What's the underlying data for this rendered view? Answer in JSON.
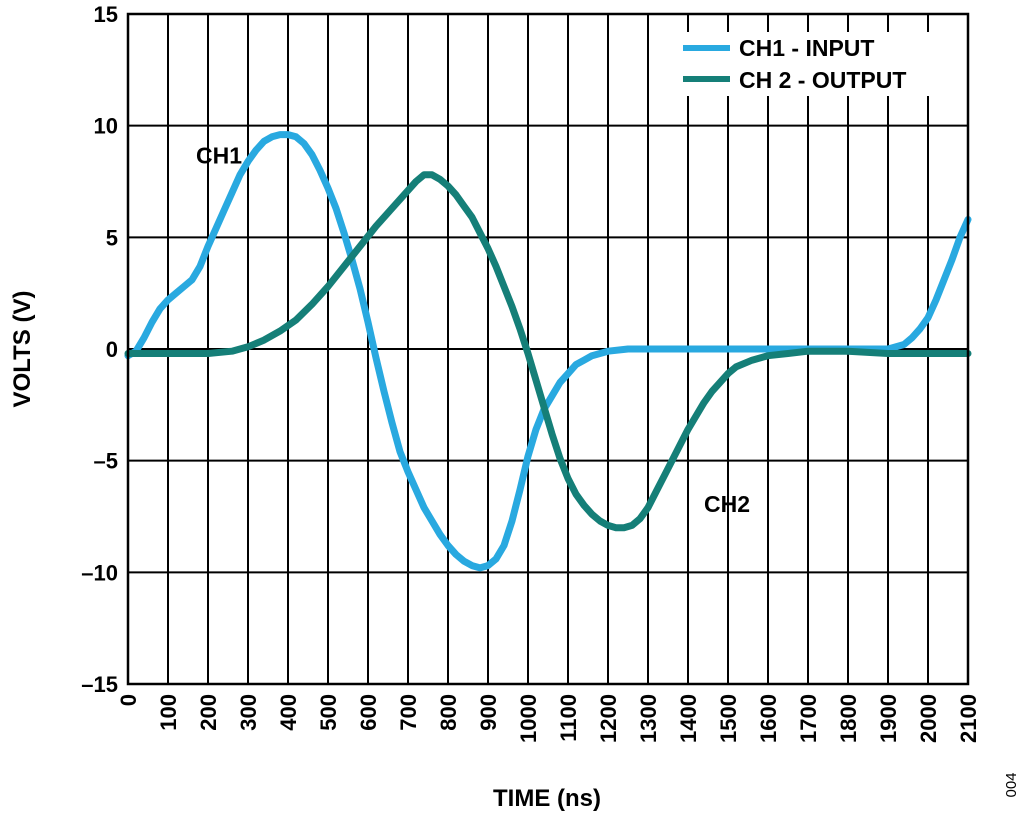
{
  "chart_data": {
    "type": "line",
    "xlabel": "TIME (ns)",
    "ylabel": "VOLTS (V)",
    "xlim": [
      0,
      2100
    ],
    "ylim": [
      -15,
      15
    ],
    "x_ticks": [
      0,
      100,
      200,
      300,
      400,
      500,
      600,
      700,
      800,
      900,
      1000,
      1100,
      1200,
      1300,
      1400,
      1500,
      1600,
      1700,
      1800,
      1900,
      2000,
      2100
    ],
    "x_tick_labels": [
      "0",
      "100",
      "200",
      "300",
      "400",
      "500",
      "600",
      "700",
      "800",
      "900",
      "1000",
      "1100",
      "1200",
      "1300",
      "1400",
      "1500",
      "1600",
      "1700",
      "1800",
      "1900",
      "2000",
      "2100"
    ],
    "y_ticks": [
      15,
      10,
      5,
      0,
      -5,
      -10,
      -15
    ],
    "y_tick_labels": [
      "15",
      "10",
      "5",
      "0",
      "–5",
      "–10",
      "–15"
    ],
    "grid": true,
    "legend_position": "top-right",
    "series": [
      {
        "name": "CH1 - INPUT",
        "color": "#29a9e0",
        "points": [
          [
            0,
            -0.3
          ],
          [
            20,
            -0.1
          ],
          [
            40,
            0.5
          ],
          [
            60,
            1.2
          ],
          [
            80,
            1.8
          ],
          [
            100,
            2.2
          ],
          [
            120,
            2.5
          ],
          [
            140,
            2.8
          ],
          [
            160,
            3.1
          ],
          [
            180,
            3.7
          ],
          [
            200,
            4.6
          ],
          [
            220,
            5.4
          ],
          [
            240,
            6.2
          ],
          [
            260,
            7
          ],
          [
            280,
            7.8
          ],
          [
            300,
            8.4
          ],
          [
            320,
            8.9
          ],
          [
            340,
            9.3
          ],
          [
            360,
            9.5
          ],
          [
            380,
            9.6
          ],
          [
            400,
            9.6
          ],
          [
            420,
            9.5
          ],
          [
            440,
            9.2
          ],
          [
            460,
            8.7
          ],
          [
            480,
            8
          ],
          [
            500,
            7.2
          ],
          [
            520,
            6.3
          ],
          [
            540,
            5.2
          ],
          [
            560,
            4
          ],
          [
            580,
            2.7
          ],
          [
            600,
            1.2
          ],
          [
            620,
            -0.4
          ],
          [
            640,
            -1.9
          ],
          [
            660,
            -3.3
          ],
          [
            680,
            -4.6
          ],
          [
            700,
            -5.5
          ],
          [
            720,
            -6.3
          ],
          [
            740,
            -7.1
          ],
          [
            760,
            -7.7
          ],
          [
            780,
            -8.3
          ],
          [
            800,
            -8.8
          ],
          [
            820,
            -9.2
          ],
          [
            840,
            -9.5
          ],
          [
            860,
            -9.7
          ],
          [
            880,
            -9.8
          ],
          [
            900,
            -9.7
          ],
          [
            920,
            -9.4
          ],
          [
            940,
            -8.8
          ],
          [
            960,
            -7.7
          ],
          [
            980,
            -6.3
          ],
          [
            1000,
            -4.8
          ],
          [
            1020,
            -3.6
          ],
          [
            1040,
            -2.7
          ],
          [
            1060,
            -2.1
          ],
          [
            1080,
            -1.5
          ],
          [
            1100,
            -1.1
          ],
          [
            1120,
            -0.7
          ],
          [
            1140,
            -0.5
          ],
          [
            1160,
            -0.3
          ],
          [
            1180,
            -0.2
          ],
          [
            1200,
            -0.1
          ],
          [
            1250,
            0
          ],
          [
            1300,
            0
          ],
          [
            1400,
            0
          ],
          [
            1500,
            0
          ],
          [
            1600,
            0
          ],
          [
            1700,
            0
          ],
          [
            1800,
            0
          ],
          [
            1850,
            0
          ],
          [
            1900,
            0
          ],
          [
            1940,
            0.2
          ],
          [
            1960,
            0.5
          ],
          [
            1980,
            0.9
          ],
          [
            2000,
            1.4
          ],
          [
            2020,
            2.2
          ],
          [
            2040,
            3.1
          ],
          [
            2060,
            4
          ],
          [
            2080,
            5
          ],
          [
            2100,
            5.8
          ]
        ]
      },
      {
        "name": "CH 2 - OUTPUT",
        "color": "#157f78",
        "points": [
          [
            0,
            -0.2
          ],
          [
            100,
            -0.2
          ],
          [
            200,
            -0.2
          ],
          [
            260,
            -0.1
          ],
          [
            300,
            0.1
          ],
          [
            340,
            0.4
          ],
          [
            380,
            0.8
          ],
          [
            420,
            1.3
          ],
          [
            460,
            2
          ],
          [
            500,
            2.8
          ],
          [
            540,
            3.7
          ],
          [
            580,
            4.6
          ],
          [
            620,
            5.5
          ],
          [
            660,
            6.3
          ],
          [
            700,
            7.1
          ],
          [
            720,
            7.5
          ],
          [
            740,
            7.8
          ],
          [
            760,
            7.8
          ],
          [
            780,
            7.6
          ],
          [
            800,
            7.3
          ],
          [
            820,
            6.9
          ],
          [
            840,
            6.4
          ],
          [
            860,
            5.9
          ],
          [
            880,
            5.2
          ],
          [
            900,
            4.5
          ],
          [
            920,
            3.7
          ],
          [
            940,
            2.8
          ],
          [
            960,
            1.9
          ],
          [
            980,
            0.9
          ],
          [
            1000,
            -0.2
          ],
          [
            1020,
            -1.4
          ],
          [
            1040,
            -2.6
          ],
          [
            1060,
            -3.8
          ],
          [
            1080,
            -4.9
          ],
          [
            1100,
            -5.8
          ],
          [
            1120,
            -6.5
          ],
          [
            1140,
            -7
          ],
          [
            1160,
            -7.4
          ],
          [
            1180,
            -7.7
          ],
          [
            1200,
            -7.9
          ],
          [
            1220,
            -8
          ],
          [
            1240,
            -8
          ],
          [
            1260,
            -7.9
          ],
          [
            1280,
            -7.6
          ],
          [
            1300,
            -7.1
          ],
          [
            1320,
            -6.4
          ],
          [
            1340,
            -5.7
          ],
          [
            1360,
            -5
          ],
          [
            1380,
            -4.3
          ],
          [
            1400,
            -3.6
          ],
          [
            1420,
            -3
          ],
          [
            1440,
            -2.4
          ],
          [
            1460,
            -1.9
          ],
          [
            1480,
            -1.5
          ],
          [
            1500,
            -1.1
          ],
          [
            1520,
            -0.8
          ],
          [
            1560,
            -0.5
          ],
          [
            1600,
            -0.3
          ],
          [
            1650,
            -0.2
          ],
          [
            1700,
            -0.1
          ],
          [
            1800,
            -0.1
          ],
          [
            1900,
            -0.2
          ],
          [
            2000,
            -0.2
          ],
          [
            2100,
            -0.2
          ]
        ]
      }
    ],
    "annotations": [
      {
        "text": "CH1",
        "x": 170,
        "y": 8.3
      },
      {
        "text": "CH2",
        "x": 1440,
        "y": -7.3
      }
    ],
    "figure_id": "004"
  }
}
